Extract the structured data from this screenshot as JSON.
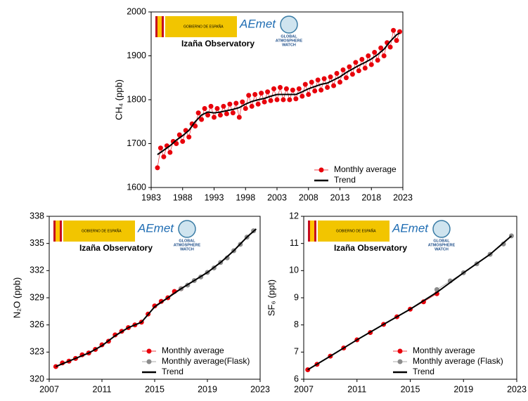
{
  "chart_data": [
    {
      "type": "scatter",
      "ylabel": "CH₄ (ppb)",
      "xlim": [
        1983,
        2023
      ],
      "xticks": [
        1983,
        1988,
        1993,
        1998,
        2003,
        2008,
        2013,
        2018,
        2023
      ],
      "ylim": [
        1600,
        2000
      ],
      "yticks": [
        1600,
        1700,
        1800,
        1900,
        2000
      ],
      "annotation": "Izaña Observatory",
      "logo_texts": [
        "GOBIERNO DE ESPAÑA",
        "AEmet",
        "GLOBAL",
        "ATMOSPHERE",
        "WATCH"
      ],
      "series": [
        {
          "name": "Monthly average",
          "color": "#e8000b",
          "mode": "line+markers",
          "x": [
            1984,
            1984.5,
            1985,
            1985.5,
            1986,
            1986.5,
            1987,
            1987.5,
            1988,
            1988.5,
            1989,
            1989.5,
            1990,
            1990.5,
            1991,
            1991.5,
            1992,
            1992.5,
            1993,
            1993.5,
            1994,
            1994.5,
            1995,
            1995.5,
            1996,
            1996.5,
            1997,
            1997.5,
            1998,
            1998.5,
            1999,
            1999.5,
            2000,
            2000.5,
            2001,
            2001.5,
            2002,
            2002.5,
            2003,
            2003.5,
            2004,
            2004.5,
            2005,
            2005.5,
            2006,
            2006.5,
            2007,
            2007.5,
            2008,
            2008.5,
            2009,
            2009.5,
            2010,
            2010.5,
            2011,
            2011.5,
            2012,
            2012.5,
            2013,
            2013.5,
            2014,
            2014.5,
            2015,
            2015.5,
            2016,
            2016.5,
            2017,
            2017.5,
            2018,
            2018.5,
            2019,
            2019.5,
            2020,
            2020.5,
            2021,
            2021.5,
            2022,
            2022.5
          ],
          "values": [
            1645,
            1690,
            1670,
            1695,
            1680,
            1705,
            1700,
            1720,
            1705,
            1730,
            1715,
            1745,
            1740,
            1770,
            1755,
            1780,
            1765,
            1785,
            1760,
            1780,
            1765,
            1785,
            1768,
            1790,
            1770,
            1792,
            1760,
            1795,
            1780,
            1810,
            1785,
            1812,
            1790,
            1815,
            1795,
            1818,
            1798,
            1825,
            1800,
            1828,
            1800,
            1825,
            1800,
            1822,
            1802,
            1825,
            1808,
            1835,
            1812,
            1840,
            1820,
            1845,
            1822,
            1848,
            1828,
            1852,
            1832,
            1860,
            1840,
            1868,
            1850,
            1875,
            1858,
            1885,
            1866,
            1892,
            1872,
            1900,
            1880,
            1908,
            1890,
            1918,
            1900,
            1930,
            1920,
            1958,
            1935,
            1955
          ]
        },
        {
          "name": "Trend",
          "color": "#000000",
          "mode": "line",
          "x": [
            1984,
            1985,
            1986,
            1987,
            1988,
            1989,
            1990,
            1991,
            1992,
            1993,
            1994,
            1995,
            1996,
            1997,
            1998,
            1999,
            2000,
            2001,
            2002,
            2003,
            2004,
            2005,
            2006,
            2007,
            2008,
            2009,
            2010,
            2011,
            2012,
            2013,
            2014,
            2015,
            2016,
            2017,
            2018,
            2019,
            2020,
            2021,
            2022,
            2022.5
          ],
          "values": [
            1675,
            1685,
            1695,
            1708,
            1718,
            1730,
            1750,
            1765,
            1772,
            1770,
            1772,
            1775,
            1778,
            1782,
            1790,
            1796,
            1800,
            1803,
            1808,
            1812,
            1812,
            1812,
            1812,
            1818,
            1825,
            1830,
            1835,
            1838,
            1845,
            1852,
            1862,
            1870,
            1878,
            1885,
            1893,
            1903,
            1915,
            1933,
            1948,
            1952
          ]
        }
      ]
    },
    {
      "type": "scatter",
      "ylabel": "N₂O (ppb)",
      "xlim": [
        2007,
        2023
      ],
      "xticks": [
        2007,
        2011,
        2015,
        2019,
        2023
      ],
      "ylim": [
        320,
        338
      ],
      "yticks": [
        320,
        323,
        326,
        329,
        332,
        335,
        338
      ],
      "annotation": "Izaña Observatory",
      "logo_texts": [
        "GOBIERNO DE ESPAÑA",
        "AEmet",
        "GLOBAL",
        "ATMOSPHERE",
        "WATCH"
      ],
      "series": [
        {
          "name": "Monthly average",
          "color": "#e8000b",
          "mode": "line+markers",
          "x": [
            2007.5,
            2008,
            2008.5,
            2009,
            2009.5,
            2010,
            2010.5,
            2011,
            2011.5,
            2012,
            2012.5,
            2013,
            2013.5,
            2014,
            2014.5,
            2015,
            2015.5,
            2016,
            2016.5,
            2017
          ],
          "values": [
            321.4,
            321.8,
            322.0,
            322.3,
            322.7,
            322.9,
            323.3,
            323.8,
            324.2,
            324.9,
            325.3,
            325.7,
            326.0,
            326.3,
            327.2,
            328.1,
            328.6,
            329.0,
            329.7,
            330.0
          ]
        },
        {
          "name": "Monthly average(Flask)",
          "color": "#8c8c8c",
          "mode": "line+markers",
          "x": [
            2017,
            2017.5,
            2018,
            2018.5,
            2019,
            2019.5,
            2020,
            2020.5,
            2021,
            2021.5,
            2022,
            2022.5
          ],
          "values": [
            330.0,
            330.4,
            330.9,
            331.3,
            331.8,
            332.3,
            332.9,
            333.4,
            334.2,
            334.9,
            335.7,
            336.4
          ]
        },
        {
          "name": "Trend",
          "color": "#000000",
          "mode": "line",
          "x": [
            2007.5,
            2008,
            2009,
            2010,
            2011,
            2012,
            2013,
            2014,
            2015,
            2016,
            2017,
            2018,
            2019,
            2020,
            2021,
            2022,
            2022.7
          ],
          "values": [
            321.4,
            321.7,
            322.3,
            322.9,
            323.7,
            324.8,
            325.7,
            326.3,
            328.0,
            329.0,
            330.0,
            330.9,
            331.8,
            332.9,
            334.2,
            335.7,
            336.6
          ]
        }
      ]
    },
    {
      "type": "scatter",
      "ylabel": "SF₆ (ppt)",
      "xlim": [
        2007,
        2023
      ],
      "xticks": [
        2007,
        2011,
        2015,
        2019,
        2023
      ],
      "ylim": [
        6,
        12
      ],
      "yticks": [
        6,
        7,
        8,
        9,
        10,
        11,
        12
      ],
      "annotation": "Izaña Observatory",
      "logo_texts": [
        "GOBIERNO DE ESPAÑA",
        "AEmet",
        "GLOBAL",
        "ATMOSPHERE",
        "WATCH"
      ],
      "series": [
        {
          "name": "Monthly average",
          "color": "#e8000b",
          "mode": "line+markers",
          "x": [
            2007.3,
            2008,
            2009,
            2010,
            2011,
            2012,
            2013,
            2014,
            2015,
            2016,
            2017
          ],
          "values": [
            6.35,
            6.55,
            6.85,
            7.15,
            7.45,
            7.72,
            8.02,
            8.3,
            8.58,
            8.85,
            9.15
          ]
        },
        {
          "name": "Monthly average (Flask)",
          "color": "#8c8c8c",
          "mode": "line+markers",
          "x": [
            2017,
            2018,
            2019,
            2020,
            2021,
            2022,
            2022.6
          ],
          "values": [
            9.3,
            9.62,
            9.92,
            10.25,
            10.6,
            10.98,
            11.28
          ]
        },
        {
          "name": "Trend",
          "color": "#000000",
          "mode": "line",
          "x": [
            2007.3,
            2009,
            2011,
            2013,
            2015,
            2017,
            2019,
            2021,
            2022.6
          ],
          "values": [
            6.35,
            6.85,
            7.45,
            8.02,
            8.58,
            9.2,
            9.92,
            10.6,
            11.28
          ]
        }
      ]
    }
  ]
}
